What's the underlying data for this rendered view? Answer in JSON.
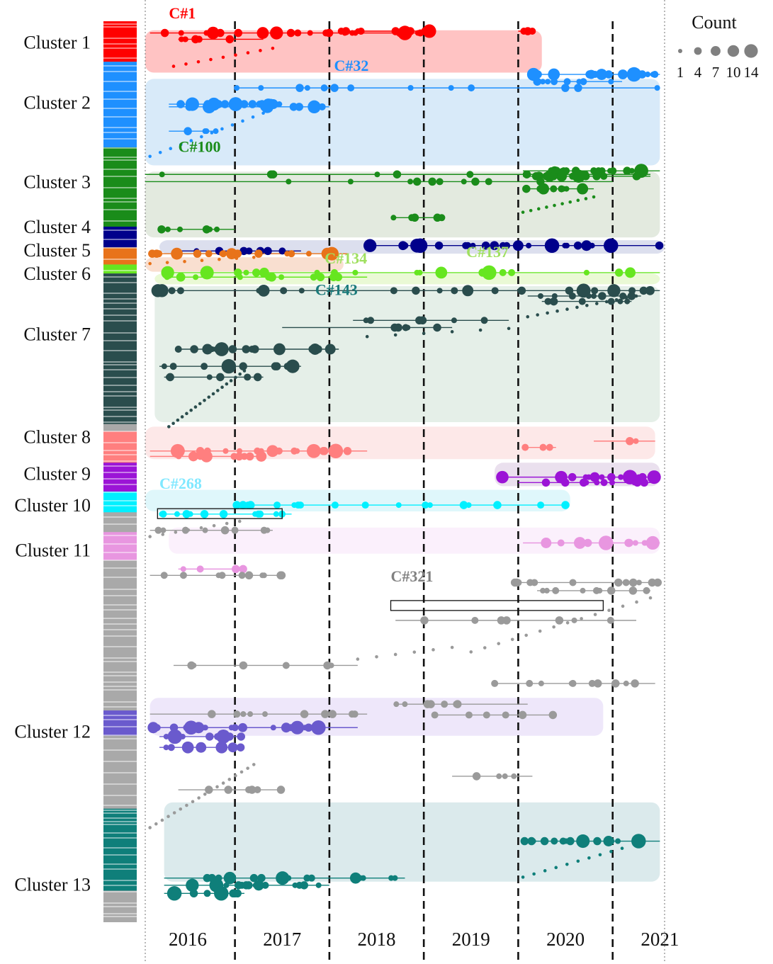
{
  "chart_data": {
    "type": "scatter",
    "title": "",
    "xlabel": "",
    "ylabel": "",
    "x_ticks": [
      "2016",
      "2017",
      "2018",
      "2019",
      "2020",
      "2021"
    ],
    "year_boundaries": [
      2016.5,
      2017.5,
      2018.5,
      2019.5,
      2020.5
    ],
    "x_range": [
      2015.55,
      2021.05
    ],
    "legend": {
      "title": "Count",
      "sizes": [
        1,
        4,
        7,
        10,
        14
      ],
      "labels": [
        "1",
        "4",
        "7",
        "10",
        "14"
      ],
      "placement": "top-right"
    },
    "clusters": [
      {
        "name": "Cluster 1",
        "color": "#ff0000",
        "bar": [
          0.0,
          0.045
        ],
        "label_y": 0.023
      },
      {
        "name": "Cluster 2",
        "color": "#1e90ff",
        "bar": [
          0.045,
          0.14
        ],
        "label_y": 0.09
      },
      {
        "name": "Cluster 3",
        "color": "#1a8c1a",
        "bar": [
          0.14,
          0.228
        ],
        "label_y": 0.178
      },
      {
        "name": "Cluster 4",
        "color": "#00008b",
        "bar": [
          0.228,
          0.251
        ],
        "label_y": 0.228
      },
      {
        "name": "Cluster 5",
        "color": "#e8731a",
        "bar": [
          0.251,
          0.27
        ],
        "label_y": 0.254
      },
      {
        "name": "Cluster 6",
        "color": "#66e620",
        "bar": [
          0.27,
          0.28
        ],
        "label_y": 0.28
      },
      {
        "name": "Cluster 7",
        "color": "#2a4d4d",
        "bar": [
          0.28,
          0.447
        ],
        "label_y": 0.347
      },
      {
        "name": "Cluster 8",
        "color": "#ff7f7f",
        "bar": [
          0.455,
          0.49
        ],
        "label_y": 0.461
      },
      {
        "name": "Cluster 9",
        "color": "#9b14d6",
        "bar": [
          0.49,
          0.522
        ],
        "label_y": 0.502
      },
      {
        "name": "Cluster 10",
        "color": "#00f0ff",
        "bar": [
          0.522,
          0.545
        ],
        "label_y": 0.537
      },
      {
        "name": "Cluster 11",
        "color": "#e896e0",
        "bar": [
          0.567,
          0.598
        ],
        "label_y": 0.587
      },
      {
        "name": "Cluster 12",
        "color": "#6a5acd",
        "bar": [
          0.765,
          0.793
        ],
        "label_y": 0.788
      },
      {
        "name": "Cluster 13",
        "color": "#0f7f7a",
        "bar": [
          0.874,
          0.965
        ],
        "label_y": 0.958
      }
    ],
    "annotations": [
      {
        "text": "C#1",
        "color": "#ff0000",
        "x": 2015.8,
        "y": 0.0
      },
      {
        "text": "C#32",
        "color": "#1e90ff",
        "x": 2017.55,
        "y": 0.058
      },
      {
        "text": "C#100",
        "color": "#1a8c1a",
        "x": 2015.9,
        "y": 0.148
      },
      {
        "text": "C#134",
        "color": "#a0e060",
        "x": 2017.45,
        "y": 0.272
      },
      {
        "text": "C#137",
        "color": "#a0e060",
        "x": 2018.95,
        "y": 0.265
      },
      {
        "text": "C#143",
        "color": "#1a7a7a",
        "x": 2017.35,
        "y": 0.307
      },
      {
        "text": "C#268",
        "color": "#80e8ff",
        "x": 2015.7,
        "y": 0.522
      },
      {
        "text": "C#321",
        "color": "#808080",
        "x": 2018.15,
        "y": 0.625
      }
    ],
    "cluster_bands": [
      {
        "cluster": "Cluster 1",
        "x": [
          2015.55,
          2019.75
        ],
        "y": [
          0.01,
          0.057
        ],
        "color": "#ffbcbc"
      },
      {
        "cluster": "Cluster 2",
        "x": [
          2015.55,
          2021.0
        ],
        "y": [
          0.064,
          0.16
        ],
        "color": "#d4e8f8"
      },
      {
        "cluster": "Cluster 3",
        "x": [
          2015.55,
          2021.0
        ],
        "y": [
          0.167,
          0.24
        ],
        "color": "#e0e8dc"
      },
      {
        "cluster": "Cluster 4",
        "x": [
          2015.7,
          2021.05
        ],
        "y": [
          0.243,
          0.258
        ],
        "color": "#d8dcec"
      },
      {
        "cluster": "Cluster 5",
        "x": [
          2015.55,
          2017.65
        ],
        "y": [
          0.262,
          0.278
        ],
        "color": "#f8dccb"
      },
      {
        "cluster": "Cluster 6",
        "x": [
          2015.65,
          2021.0
        ],
        "y": [
          0.28,
          0.292
        ],
        "color": "#e8f8d0"
      },
      {
        "cluster": "Cluster 7",
        "x": [
          2015.65,
          2021.0
        ],
        "y": [
          0.294,
          0.445
        ],
        "color": "#e2ede6"
      },
      {
        "cluster": "Cluster 8",
        "x": [
          2015.55,
          2020.95
        ],
        "y": [
          0.45,
          0.486
        ],
        "color": "#fde6e6"
      },
      {
        "cluster": "Cluster 9",
        "x": [
          2019.25,
          2021.0
        ],
        "y": [
          0.49,
          0.516
        ],
        "color": "#e8ddec"
      },
      {
        "cluster": "Cluster 10",
        "x": [
          2015.55,
          2020.05
        ],
        "y": [
          0.52,
          0.544
        ],
        "color": "#dcf6fb"
      },
      {
        "cluster": "Cluster 11",
        "x": [
          2015.8,
          2021.0
        ],
        "y": [
          0.562,
          0.591
        ],
        "color": "#fbeefc"
      },
      {
        "cluster": "Cluster 12",
        "x": [
          2015.6,
          2020.4
        ],
        "y": [
          0.751,
          0.793
        ],
        "color": "#ece4fa"
      },
      {
        "cluster": "Cluster 13",
        "x": [
          2015.75,
          2021.0
        ],
        "y": [
          0.867,
          0.955
        ],
        "color": "#d7e8ea"
      }
    ],
    "seed": 7
  }
}
